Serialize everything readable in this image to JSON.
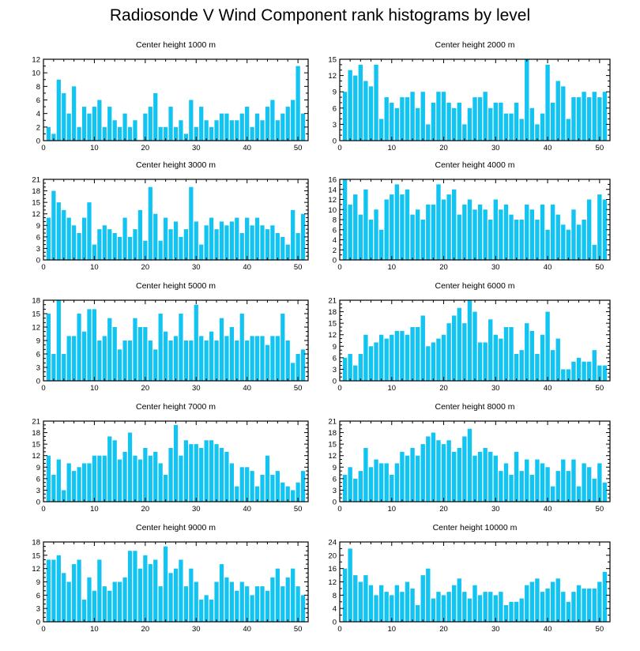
{
  "title": "Radiosonde V Wind Component rank histograms by level",
  "bar_color": "#12c4f2",
  "chart_data": [
    {
      "type": "bar",
      "title": "Center height 1000 m",
      "xlabel": "",
      "ylabel": "",
      "xlim": [
        0,
        52
      ],
      "ylim": [
        0,
        12
      ],
      "yticks": [
        0,
        2,
        4,
        6,
        8,
        10,
        12
      ],
      "xticks": [
        0,
        10,
        20,
        30,
        40,
        50
      ],
      "categories": [
        1,
        2,
        3,
        4,
        5,
        6,
        7,
        8,
        9,
        10,
        11,
        12,
        13,
        14,
        15,
        16,
        17,
        18,
        19,
        20,
        21,
        22,
        23,
        24,
        25,
        26,
        27,
        28,
        29,
        30,
        31,
        32,
        33,
        34,
        35,
        36,
        37,
        38,
        39,
        40,
        41,
        42,
        43,
        44,
        45,
        46,
        47,
        48,
        49,
        50,
        51
      ],
      "values": [
        2,
        1,
        9,
        7,
        4,
        8,
        2,
        5,
        4,
        5,
        6,
        2,
        5,
        3,
        2,
        4,
        2,
        3,
        0,
        4,
        5,
        7,
        2,
        2,
        5,
        2,
        3,
        1,
        6,
        2,
        5,
        3,
        2,
        3,
        4,
        4,
        3,
        3,
        4,
        5,
        2,
        4,
        3,
        5,
        6,
        3,
        4,
        5,
        6,
        11,
        4
      ]
    },
    {
      "type": "bar",
      "title": "Center height 2000 m",
      "xlabel": "",
      "ylabel": "",
      "xlim": [
        0,
        52
      ],
      "ylim": [
        0,
        15
      ],
      "yticks": [
        0,
        3,
        6,
        9,
        12,
        15
      ],
      "xticks": [
        0,
        10,
        20,
        30,
        40,
        50
      ],
      "categories": [
        1,
        2,
        3,
        4,
        5,
        6,
        7,
        8,
        9,
        10,
        11,
        12,
        13,
        14,
        15,
        16,
        17,
        18,
        19,
        20,
        21,
        22,
        23,
        24,
        25,
        26,
        27,
        28,
        29,
        30,
        31,
        32,
        33,
        34,
        35,
        36,
        37,
        38,
        39,
        40,
        41,
        42,
        43,
        44,
        45,
        46,
        47,
        48,
        49,
        50,
        51
      ],
      "values": [
        9,
        13,
        12,
        14,
        11,
        10,
        14,
        4,
        8,
        7,
        6,
        8,
        8,
        9,
        6,
        9,
        3,
        7,
        9,
        9,
        7,
        6,
        7,
        3,
        6,
        8,
        8,
        9,
        6,
        7,
        7,
        5,
        5,
        7,
        4,
        15,
        6,
        3,
        5,
        14,
        7,
        11,
        10,
        4,
        8,
        8,
        9,
        8,
        9,
        8,
        9
      ]
    },
    {
      "type": "bar",
      "title": "Center height 3000 m",
      "xlabel": "",
      "ylabel": "",
      "xlim": [
        0,
        52
      ],
      "ylim": [
        0,
        21
      ],
      "yticks": [
        0,
        3,
        6,
        9,
        12,
        15,
        18,
        21
      ],
      "xticks": [
        0,
        10,
        20,
        30,
        40,
        50
      ],
      "categories": [
        1,
        2,
        3,
        4,
        5,
        6,
        7,
        8,
        9,
        10,
        11,
        12,
        13,
        14,
        15,
        16,
        17,
        18,
        19,
        20,
        21,
        22,
        23,
        24,
        25,
        26,
        27,
        28,
        29,
        30,
        31,
        32,
        33,
        34,
        35,
        36,
        37,
        38,
        39,
        40,
        41,
        42,
        43,
        44,
        45,
        46,
        47,
        48,
        49,
        50,
        51
      ],
      "values": [
        11,
        18,
        15,
        13,
        11,
        9,
        7,
        11,
        15,
        4,
        8,
        9,
        8,
        7,
        6,
        11,
        6,
        8,
        13,
        5,
        19,
        12,
        5,
        11,
        8,
        10,
        6,
        8,
        19,
        10,
        4,
        9,
        11,
        8,
        10,
        9,
        10,
        11,
        7,
        11,
        9,
        11,
        9,
        8,
        9,
        7,
        6,
        4,
        13,
        7,
        12
      ]
    },
    {
      "type": "bar",
      "title": "Center height 4000 m",
      "xlabel": "",
      "ylabel": "",
      "xlim": [
        0,
        52
      ],
      "ylim": [
        0,
        16
      ],
      "yticks": [
        0,
        2,
        4,
        6,
        8,
        10,
        12,
        14,
        16
      ],
      "xticks": [
        0,
        10,
        20,
        30,
        40,
        50
      ],
      "categories": [
        1,
        2,
        3,
        4,
        5,
        6,
        7,
        8,
        9,
        10,
        11,
        12,
        13,
        14,
        15,
        16,
        17,
        18,
        19,
        20,
        21,
        22,
        23,
        24,
        25,
        26,
        27,
        28,
        29,
        30,
        31,
        32,
        33,
        34,
        35,
        36,
        37,
        38,
        39,
        40,
        41,
        42,
        43,
        44,
        45,
        46,
        47,
        48,
        49,
        50,
        51
      ],
      "values": [
        16,
        11,
        13,
        9,
        14,
        8,
        10,
        6,
        12,
        13,
        15,
        13,
        14,
        9,
        10,
        8,
        11,
        11,
        15,
        12,
        13,
        14,
        9,
        11,
        12,
        10,
        11,
        10,
        8,
        12,
        10,
        11,
        9,
        8,
        8,
        11,
        10,
        8,
        11,
        6,
        11,
        9,
        7,
        6,
        10,
        7,
        8,
        12,
        3,
        13,
        12
      ]
    },
    {
      "type": "bar",
      "title": "Center height 5000 m",
      "xlabel": "",
      "ylabel": "",
      "xlim": [
        0,
        52
      ],
      "ylim": [
        0,
        18
      ],
      "yticks": [
        0,
        3,
        6,
        9,
        12,
        15,
        18
      ],
      "xticks": [
        0,
        10,
        20,
        30,
        40,
        50
      ],
      "categories": [
        1,
        2,
        3,
        4,
        5,
        6,
        7,
        8,
        9,
        10,
        11,
        12,
        13,
        14,
        15,
        16,
        17,
        18,
        19,
        20,
        21,
        22,
        23,
        24,
        25,
        26,
        27,
        28,
        29,
        30,
        31,
        32,
        33,
        34,
        35,
        36,
        37,
        38,
        39,
        40,
        41,
        42,
        43,
        44,
        45,
        46,
        47,
        48,
        49,
        50,
        51
      ],
      "values": [
        15,
        6,
        18,
        6,
        10,
        10,
        15,
        11,
        16,
        16,
        9,
        10,
        14,
        12,
        7,
        9,
        9,
        14,
        12,
        12,
        9,
        7,
        15,
        11,
        9,
        10,
        15,
        9,
        9,
        17,
        10,
        9,
        11,
        9,
        14,
        10,
        12,
        9,
        15,
        9,
        10,
        10,
        10,
        8,
        10,
        10,
        15,
        9,
        4,
        6,
        7
      ]
    },
    {
      "type": "bar",
      "title": "Center height 6000 m",
      "xlabel": "",
      "ylabel": "",
      "xlim": [
        0,
        52
      ],
      "ylim": [
        0,
        21
      ],
      "yticks": [
        0,
        3,
        6,
        9,
        12,
        15,
        18,
        21
      ],
      "xticks": [
        0,
        10,
        20,
        30,
        40,
        50
      ],
      "categories": [
        1,
        2,
        3,
        4,
        5,
        6,
        7,
        8,
        9,
        10,
        11,
        12,
        13,
        14,
        15,
        16,
        17,
        18,
        19,
        20,
        21,
        22,
        23,
        24,
        25,
        26,
        27,
        28,
        29,
        30,
        31,
        32,
        33,
        34,
        35,
        36,
        37,
        38,
        39,
        40,
        41,
        42,
        43,
        44,
        45,
        46,
        47,
        48,
        49,
        50,
        51
      ],
      "values": [
        6,
        7,
        4,
        7,
        12,
        9,
        10,
        12,
        11,
        12,
        13,
        13,
        12,
        14,
        14,
        17,
        9,
        10,
        11,
        12,
        15,
        17,
        19,
        15,
        21,
        18,
        10,
        10,
        16,
        12,
        11,
        14,
        14,
        7,
        8,
        15,
        13,
        7,
        12,
        18,
        8,
        11,
        3,
        3,
        5,
        6,
        5,
        5,
        8,
        4,
        4
      ]
    },
    {
      "type": "bar",
      "title": "Center height 7000 m",
      "xlabel": "",
      "ylabel": "",
      "xlim": [
        0,
        52
      ],
      "ylim": [
        0,
        21
      ],
      "yticks": [
        0,
        3,
        6,
        9,
        12,
        15,
        18,
        21
      ],
      "xticks": [
        0,
        10,
        20,
        30,
        40,
        50
      ],
      "categories": [
        1,
        2,
        3,
        4,
        5,
        6,
        7,
        8,
        9,
        10,
        11,
        12,
        13,
        14,
        15,
        16,
        17,
        18,
        19,
        20,
        21,
        22,
        23,
        24,
        25,
        26,
        27,
        28,
        29,
        30,
        31,
        32,
        33,
        34,
        35,
        36,
        37,
        38,
        39,
        40,
        41,
        42,
        43,
        44,
        45,
        46,
        47,
        48,
        49,
        50,
        51
      ],
      "values": [
        12,
        7,
        11,
        3,
        10,
        8,
        9,
        10,
        10,
        12,
        12,
        12,
        17,
        16,
        11,
        13,
        18,
        12,
        11,
        14,
        12,
        13,
        10,
        7,
        14,
        20,
        12,
        16,
        15,
        15,
        14,
        16,
        16,
        15,
        14,
        13,
        10,
        4,
        9,
        9,
        8,
        4,
        7,
        12,
        7,
        8,
        5,
        4,
        3,
        5,
        8
      ]
    },
    {
      "type": "bar",
      "title": "Center height 8000 m",
      "xlabel": "",
      "ylabel": "",
      "xlim": [
        0,
        52
      ],
      "ylim": [
        0,
        21
      ],
      "yticks": [
        0,
        3,
        6,
        9,
        12,
        15,
        18,
        21
      ],
      "xticks": [
        0,
        10,
        20,
        30,
        40,
        50
      ],
      "categories": [
        1,
        2,
        3,
        4,
        5,
        6,
        7,
        8,
        9,
        10,
        11,
        12,
        13,
        14,
        15,
        16,
        17,
        18,
        19,
        20,
        21,
        22,
        23,
        24,
        25,
        26,
        27,
        28,
        29,
        30,
        31,
        32,
        33,
        34,
        35,
        36,
        37,
        38,
        39,
        40,
        41,
        42,
        43,
        44,
        45,
        46,
        47,
        48,
        49,
        50,
        51
      ],
      "values": [
        7,
        9,
        6,
        8,
        14,
        9,
        11,
        10,
        10,
        7,
        10,
        13,
        12,
        14,
        12,
        15,
        17,
        18,
        16,
        15,
        16,
        13,
        14,
        17,
        19,
        12,
        13,
        14,
        13,
        12,
        8,
        10,
        7,
        13,
        8,
        11,
        7,
        11,
        10,
        9,
        4,
        8,
        11,
        8,
        11,
        4,
        10,
        9,
        6,
        10,
        5
      ]
    },
    {
      "type": "bar",
      "title": "Center height 9000 m",
      "xlabel": "",
      "ylabel": "",
      "xlim": [
        0,
        52
      ],
      "ylim": [
        0,
        18
      ],
      "yticks": [
        0,
        3,
        6,
        9,
        12,
        15,
        18
      ],
      "xticks": [
        0,
        10,
        20,
        30,
        40,
        50
      ],
      "categories": [
        1,
        2,
        3,
        4,
        5,
        6,
        7,
        8,
        9,
        10,
        11,
        12,
        13,
        14,
        15,
        16,
        17,
        18,
        19,
        20,
        21,
        22,
        23,
        24,
        25,
        26,
        27,
        28,
        29,
        30,
        31,
        32,
        33,
        34,
        35,
        36,
        37,
        38,
        39,
        40,
        41,
        42,
        43,
        44,
        45,
        46,
        47,
        48,
        49,
        50,
        51
      ],
      "values": [
        14,
        14,
        15,
        11,
        9,
        13,
        14,
        5,
        10,
        7,
        14,
        8,
        7,
        9,
        9,
        10,
        16,
        16,
        12,
        15,
        13,
        14,
        8,
        17,
        11,
        12,
        14,
        8,
        12,
        9,
        5,
        6,
        5,
        9,
        13,
        10,
        9,
        7,
        9,
        8,
        6,
        8,
        8,
        7,
        10,
        12,
        8,
        10,
        12,
        8,
        6
      ]
    },
    {
      "type": "bar",
      "title": "Center height 10000 m",
      "xlabel": "",
      "ylabel": "",
      "xlim": [
        0,
        52
      ],
      "ylim": [
        0,
        24
      ],
      "yticks": [
        0,
        4,
        8,
        12,
        16,
        20,
        24
      ],
      "xticks": [
        0,
        10,
        20,
        30,
        40,
        50
      ],
      "categories": [
        1,
        2,
        3,
        4,
        5,
        6,
        7,
        8,
        9,
        10,
        11,
        12,
        13,
        14,
        15,
        16,
        17,
        18,
        19,
        20,
        21,
        22,
        23,
        24,
        25,
        26,
        27,
        28,
        29,
        30,
        31,
        32,
        33,
        34,
        35,
        36,
        37,
        38,
        39,
        40,
        41,
        42,
        43,
        44,
        45,
        46,
        47,
        48,
        49,
        50,
        51
      ],
      "values": [
        16,
        22,
        14,
        12,
        14,
        11,
        8,
        11,
        9,
        8,
        11,
        9,
        12,
        10,
        5,
        14,
        16,
        7,
        9,
        8,
        9,
        11,
        13,
        9,
        7,
        11,
        8,
        9,
        9,
        8,
        9,
        5,
        6,
        6,
        7,
        11,
        12,
        13,
        9,
        10,
        12,
        13,
        9,
        6,
        9,
        11,
        10,
        10,
        10,
        12,
        15
      ]
    }
  ]
}
